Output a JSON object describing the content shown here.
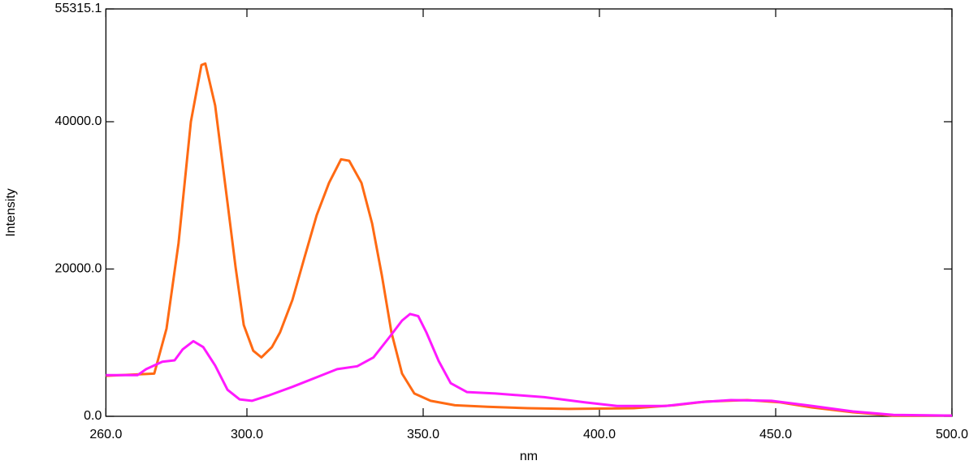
{
  "chart_data": {
    "type": "line",
    "xlabel": "nm",
    "ylabel": "Intensity",
    "xlim": [
      260,
      500
    ],
    "ylim": [
      0,
      55315.1
    ],
    "xticks": [
      {
        "value": 260,
        "label": "260.0"
      },
      {
        "value": 300,
        "label": "300.0"
      },
      {
        "value": 350,
        "label": "350.0"
      },
      {
        "value": 400,
        "label": "400.0"
      },
      {
        "value": 450,
        "label": "450.0"
      },
      {
        "value": 500,
        "label": "500.0"
      }
    ],
    "yticks": [
      {
        "value": 0,
        "label": "0.0"
      },
      {
        "value": 20000,
        "label": "20000.0"
      },
      {
        "value": 40000,
        "label": "40000.0"
      },
      55315.1
    ],
    "series": [
      {
        "color": "#ff6a13",
        "x": [
          260,
          273.7,
          277.2,
          280.6,
          284.1,
          287.1,
          288.2,
          291,
          294.5,
          296.8,
          299.1,
          301.8,
          304.1,
          307.1,
          309.4,
          312.9,
          316.3,
          319.8,
          323.3,
          326.7,
          329,
          332.5,
          335.5,
          338.3,
          341,
          344,
          347.5,
          352.1,
          359,
          368.2,
          379.7,
          391.2,
          409.7,
          421.2,
          430.4,
          441.9,
          451.2,
          460.4,
          471.9,
          483.4,
          500
        ],
        "values": [
          5500,
          5800,
          11900,
          23500,
          40000,
          47700,
          47900,
          42200,
          29000,
          20200,
          12400,
          8900,
          8000,
          9400,
          11400,
          15800,
          21500,
          27300,
          31700,
          34900,
          34700,
          31700,
          26200,
          19100,
          11400,
          5800,
          3100,
          2100,
          1500,
          1300,
          1100,
          1000,
          1100,
          1500,
          2000,
          2200,
          1900,
          1200,
          550,
          100,
          100
        ]
      },
      {
        "color": "#ff19ff",
        "x": [
          260,
          269,
          271.4,
          276,
          279.5,
          281.8,
          284.8,
          287.6,
          291,
          294.5,
          297.9,
          301.4,
          306,
          312.9,
          319.8,
          325.6,
          331.3,
          335.9,
          340.5,
          344,
          346.3,
          348.6,
          350.9,
          354.4,
          357.8,
          362.4,
          370.5,
          384.3,
          395.8,
          405,
          418.8,
          428,
          437.3,
          448.8,
          460.4,
          471.9,
          483.4,
          500
        ],
        "values": [
          5600,
          5600,
          6400,
          7400,
          7600,
          9100,
          10200,
          9400,
          6900,
          3600,
          2300,
          2100,
          2800,
          4000,
          5300,
          6400,
          6800,
          8000,
          10800,
          13000,
          13900,
          13600,
          11400,
          7500,
          4500,
          3300,
          3100,
          2600,
          1900,
          1400,
          1400,
          1900,
          2200,
          2100,
          1400,
          660,
          200,
          100
        ]
      }
    ]
  }
}
